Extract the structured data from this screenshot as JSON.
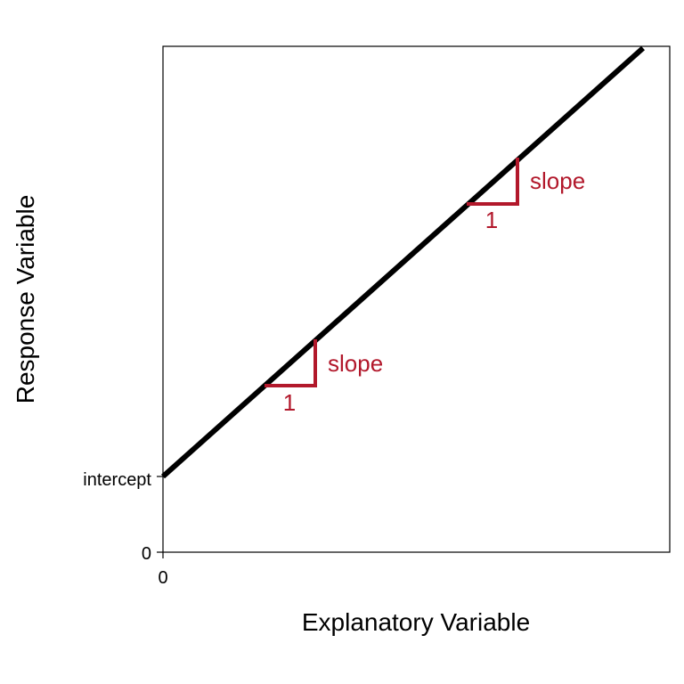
{
  "diagram": {
    "xlabel": "Explanatory Variable",
    "ylabel": "Response Variable",
    "x_tick_labels": [
      "0"
    ],
    "y_tick_labels": [
      "0",
      "intercept"
    ],
    "slope_annotations": [
      {
        "slope_label": "slope",
        "run_label": "1"
      },
      {
        "slope_label": "slope",
        "run_label": "1"
      }
    ]
  },
  "colors": {
    "line": "#000000",
    "annotation": "#B2182B",
    "frame": "#000000"
  }
}
